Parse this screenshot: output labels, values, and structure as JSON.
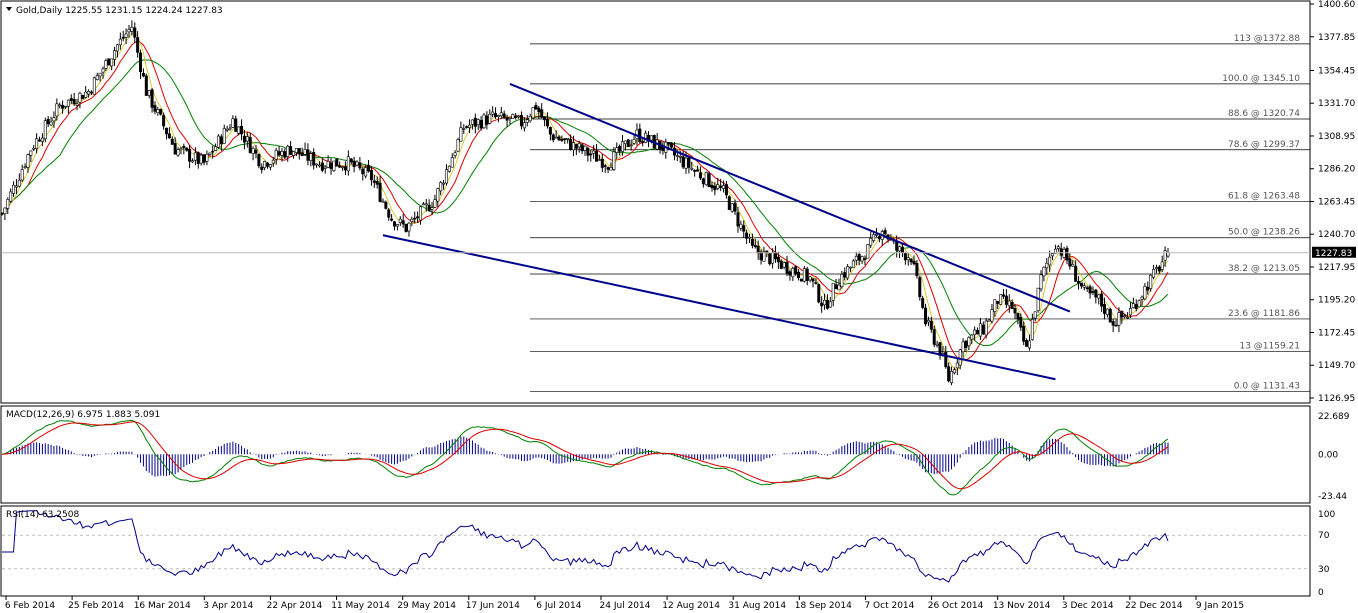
{
  "header": {
    "symbol_line": "Gold,Daily  1225.55 1231.15 1224.24 1227.83"
  },
  "colors": {
    "ma_fast": "#e00000",
    "ma_slow": "#008000",
    "ma_third": "#d4c000",
    "trendline": "#00008b",
    "fib": "#000000",
    "candle": "#000000",
    "rsi": "#00008b",
    "macd_main": "#008000",
    "macd_signal": "#e00000",
    "macd_hist": "#00008b"
  },
  "chart_data": [
    {
      "type": "candlestick",
      "title": "Gold,Daily",
      "ohlc_label": "1225.55 1231.15 1224.24 1227.83",
      "current_price": "1227.83",
      "ylim": [
        1126.95,
        1400.6
      ],
      "y_ticks": [
        "1400.60",
        "1377.85",
        "1354.45",
        "1331.70",
        "1308.95",
        "1286.20",
        "1263.45",
        "1240.70",
        "1217.95",
        "1195.20",
        "1172.45",
        "1149.70",
        "1126.95"
      ],
      "x_ticks": [
        "6 Feb 2014",
        "25 Feb 2014",
        "16 Mar 2014",
        "3 Apr 2014",
        "22 Apr 2014",
        "11 May 2014",
        "29 May 2014",
        "17 Jun 2014",
        "6 Jul 2014",
        "24 Jul 2014",
        "12 Aug 2014",
        "31 Aug 2014",
        "18 Sep 2014",
        "7 Oct 2014",
        "26 Oct 2014",
        "13 Nov 2014",
        "3 Dec 2014",
        "22 Dec 2014",
        "9 Jan 2015"
      ],
      "price_path": [
        {
          "d": 0,
          "p": 1255
        },
        {
          "d": 10,
          "p": 1300
        },
        {
          "d": 20,
          "p": 1330
        },
        {
          "d": 30,
          "p": 1340
        },
        {
          "d": 40,
          "p": 1372
        },
        {
          "d": 45,
          "p": 1385
        },
        {
          "d": 50,
          "p": 1340
        },
        {
          "d": 60,
          "p": 1300
        },
        {
          "d": 70,
          "p": 1290
        },
        {
          "d": 80,
          "p": 1320
        },
        {
          "d": 90,
          "p": 1290
        },
        {
          "d": 100,
          "p": 1300
        },
        {
          "d": 110,
          "p": 1290
        },
        {
          "d": 120,
          "p": 1290
        },
        {
          "d": 128,
          "p": 1280
        },
        {
          "d": 135,
          "p": 1252
        },
        {
          "d": 140,
          "p": 1245
        },
        {
          "d": 150,
          "p": 1265
        },
        {
          "d": 160,
          "p": 1315
        },
        {
          "d": 170,
          "p": 1322
        },
        {
          "d": 180,
          "p": 1318
        },
        {
          "d": 185,
          "p": 1330
        },
        {
          "d": 190,
          "p": 1310
        },
        {
          "d": 200,
          "p": 1300
        },
        {
          "d": 210,
          "p": 1290
        },
        {
          "d": 220,
          "p": 1310
        },
        {
          "d": 230,
          "p": 1300
        },
        {
          "d": 240,
          "p": 1285
        },
        {
          "d": 250,
          "p": 1270
        },
        {
          "d": 260,
          "p": 1230
        },
        {
          "d": 270,
          "p": 1220
        },
        {
          "d": 280,
          "p": 1210
        },
        {
          "d": 285,
          "p": 1190
        },
        {
          "d": 290,
          "p": 1210
        },
        {
          "d": 300,
          "p": 1230
        },
        {
          "d": 305,
          "p": 1245
        },
        {
          "d": 310,
          "p": 1230
        },
        {
          "d": 315,
          "p": 1225
        },
        {
          "d": 320,
          "p": 1180
        },
        {
          "d": 325,
          "p": 1160
        },
        {
          "d": 328,
          "p": 1140
        },
        {
          "d": 333,
          "p": 1165
        },
        {
          "d": 340,
          "p": 1175
        },
        {
          "d": 345,
          "p": 1195
        },
        {
          "d": 350,
          "p": 1190
        },
        {
          "d": 355,
          "p": 1160
        },
        {
          "d": 360,
          "p": 1210
        },
        {
          "d": 365,
          "p": 1235
        },
        {
          "d": 370,
          "p": 1220
        },
        {
          "d": 375,
          "p": 1200
        },
        {
          "d": 380,
          "p": 1195
        },
        {
          "d": 385,
          "p": 1180
        },
        {
          "d": 390,
          "p": 1185
        },
        {
          "d": 395,
          "p": 1200
        },
        {
          "d": 400,
          "p": 1215
        },
        {
          "d": 404,
          "p": 1228
        }
      ],
      "fibonacci": [
        {
          "label": "113 @1372.88",
          "value": 1372.88
        },
        {
          "label": "100.0 @ 1345.10",
          "value": 1345.1
        },
        {
          "label": "88.6 @ 1320.74",
          "value": 1320.74
        },
        {
          "label": "78.6 @ 1299.37",
          "value": 1299.37
        },
        {
          "label": "61.8 @ 1263.48",
          "value": 1263.48
        },
        {
          "label": "50.0 @ 1238.26",
          "value": 1238.26
        },
        {
          "label": "38.2 @ 1213.05",
          "value": 1213.05
        },
        {
          "label": "23.6 @ 1181.86",
          "value": 1181.86
        },
        {
          "label": "13 @1159.21",
          "value": 1159.21
        },
        {
          "label": "0.0 @ 1131.43",
          "value": 1131.43
        }
      ]
    },
    {
      "type": "line",
      "title": "MACD(12,26,9) 6.975 1.883 5.091",
      "ylim": [
        -23.44,
        22.689
      ],
      "y_ticks": [
        "22.689",
        "0.00",
        "-23.44"
      ]
    },
    {
      "type": "line",
      "title": "RSI(14) 63.2508",
      "ylim": [
        0,
        100
      ],
      "y_ticks": [
        "100",
        "70",
        "30",
        "0"
      ],
      "levels": [
        70,
        30
      ]
    }
  ]
}
